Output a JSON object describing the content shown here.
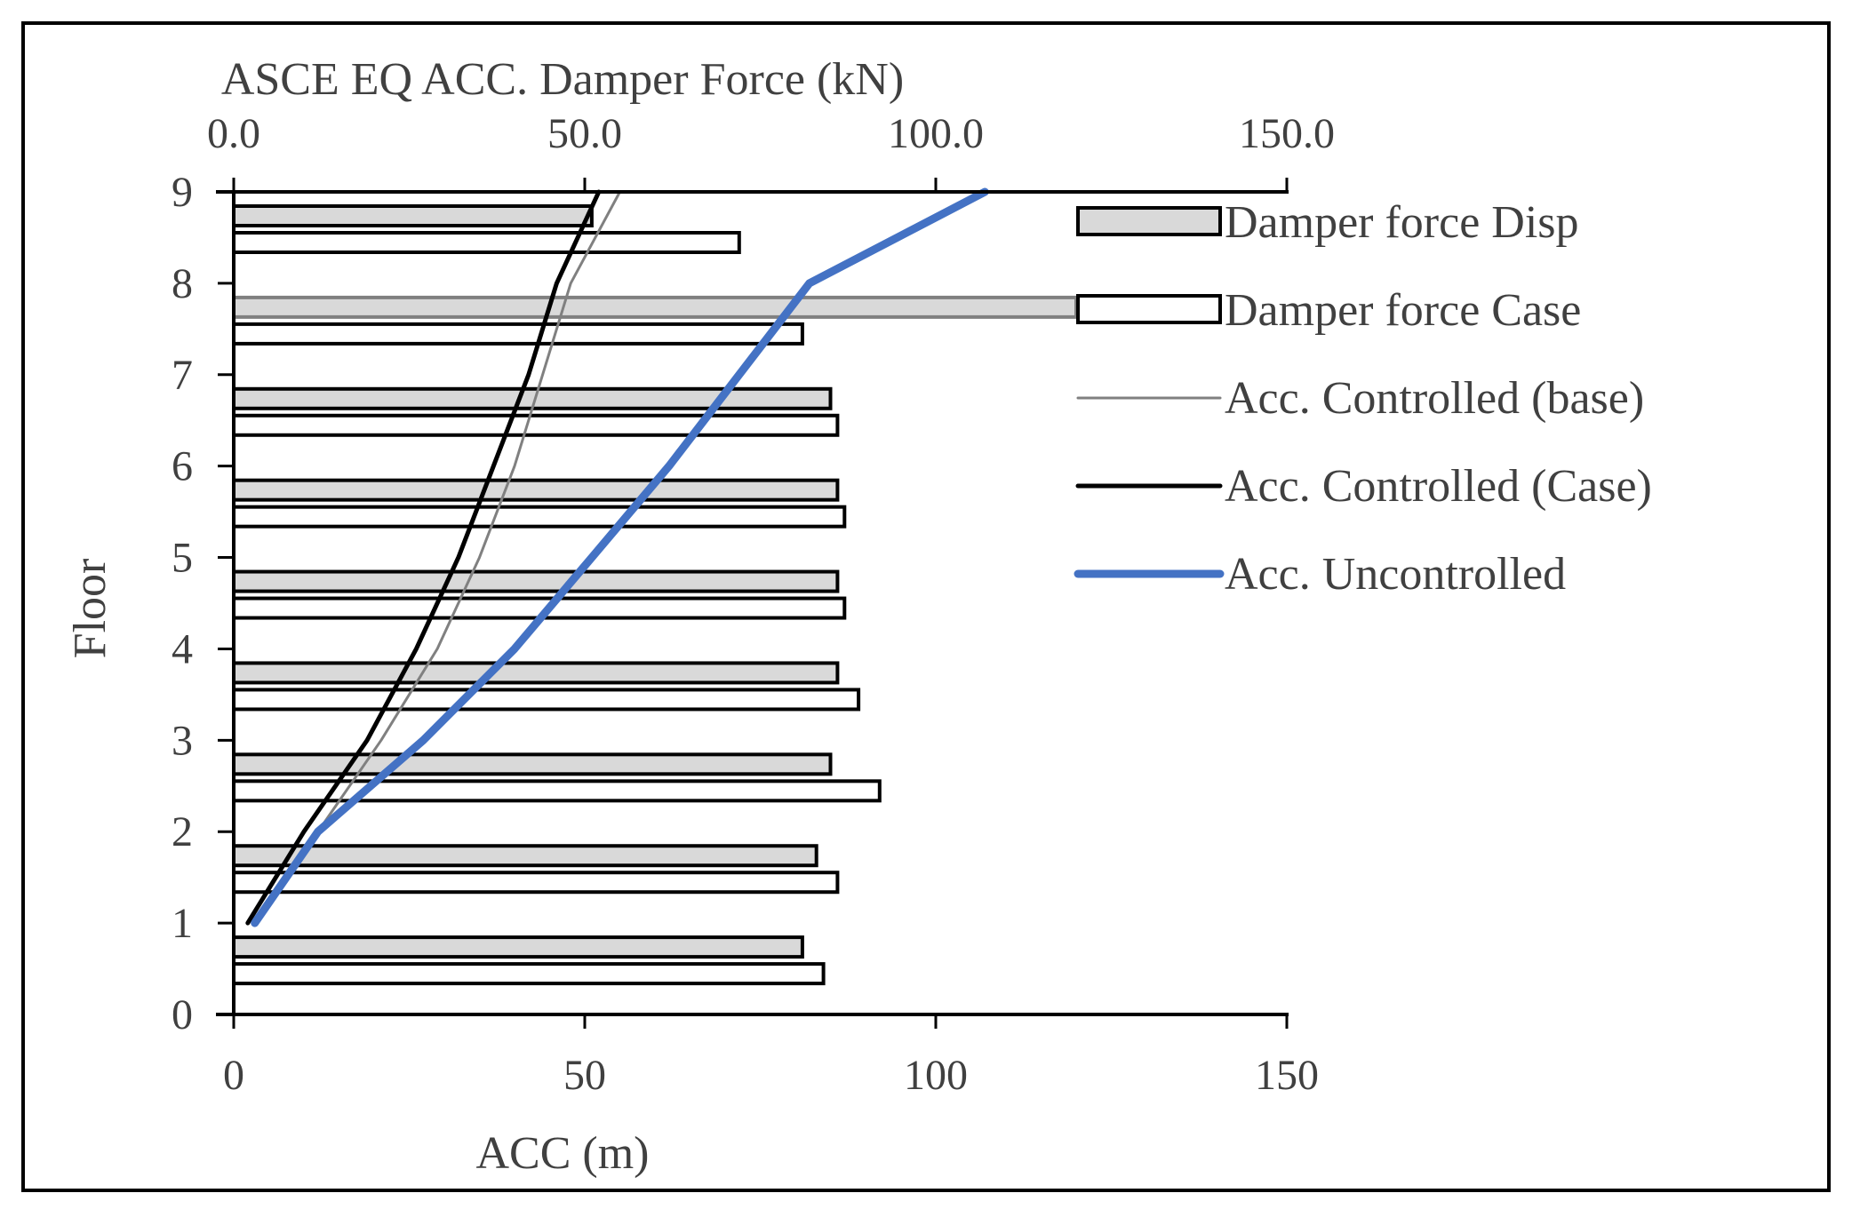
{
  "chart_data": {
    "type": "bar",
    "title": "ASCE EQ ACC. Damper Force (kN)",
    "ylabel": "Floor",
    "xlabel": "ACC (m)",
    "floor_ticks": [
      "0",
      "1",
      "2",
      "3",
      "4",
      "5",
      "6",
      "7",
      "8",
      "9"
    ],
    "ylim": [
      0,
      9
    ],
    "bottom_axis": {
      "range": [
        0,
        150
      ],
      "ticks": [
        "0",
        "50",
        "100",
        "150"
      ]
    },
    "top_axis": {
      "range": [
        0,
        150
      ],
      "ticks": [
        "0.0",
        "50.0",
        "100.0",
        "150.0"
      ]
    },
    "categories": [
      "0",
      "1",
      "2",
      "3",
      "4",
      "5",
      "6",
      "7",
      "8"
    ],
    "series": [
      {
        "name": "Damper force Disp",
        "kind": "bar",
        "axis": "top",
        "color": "#d9d9d9",
        "values": [
          81,
          83,
          85,
          86,
          86,
          86,
          85,
          120,
          51
        ]
      },
      {
        "name": "Damper force Case",
        "kind": "bar",
        "axis": "top",
        "color": "#ffffff",
        "values": [
          84,
          86,
          92,
          89,
          87,
          87,
          86,
          81,
          72
        ]
      }
    ],
    "lines": [
      {
        "name": "Acc. Controlled (base)",
        "kind": "line",
        "axis": "bottom",
        "color": "#808080",
        "floors": [
          1,
          2,
          3,
          4,
          5,
          6,
          7,
          8,
          9
        ],
        "values": [
          3,
          12,
          21,
          29,
          35,
          40,
          44,
          48,
          55
        ]
      },
      {
        "name": "Acc. Controlled (Case)",
        "kind": "line",
        "axis": "bottom",
        "color": "#000000",
        "floors": [
          1,
          2,
          3,
          4,
          5,
          6,
          7,
          8,
          9
        ],
        "values": [
          2,
          10,
          19,
          26,
          32,
          37,
          42,
          46,
          52
        ]
      },
      {
        "name": "Acc. Uncontrolled",
        "kind": "line",
        "axis": "bottom",
        "color": "#4472c4",
        "floors": [
          1,
          2,
          3,
          4,
          5,
          6,
          7,
          8,
          9
        ],
        "values": [
          3,
          12,
          27,
          40,
          51,
          62,
          72,
          82,
          107
        ]
      }
    ],
    "legend_position": "right",
    "grid": false
  }
}
